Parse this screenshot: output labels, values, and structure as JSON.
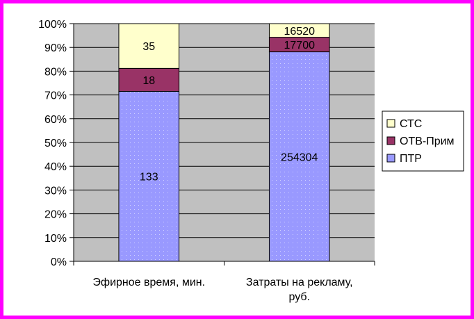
{
  "chart_data": {
    "type": "bar",
    "stacked": true,
    "normalized": true,
    "categories": [
      [
        "Эфирное время, мин."
      ],
      [
        "Затраты на рекламу,",
        "руб."
      ]
    ],
    "series": [
      {
        "name": "ПТР",
        "values": [
          133,
          254304
        ],
        "color": "#9999ff"
      },
      {
        "name": "ОТВ-Прим",
        "values": [
          18,
          17700
        ],
        "color": "#993366"
      },
      {
        "name": "СТС",
        "values": [
          35,
          16520
        ],
        "color": "#ffffcc"
      }
    ],
    "ylim": [
      0,
      100
    ],
    "yticks": [
      0,
      10,
      20,
      30,
      40,
      50,
      60,
      70,
      80,
      90,
      100
    ],
    "ytick_suffix": "%",
    "grid": true,
    "legend": {
      "placement": "right",
      "order": [
        "СТС",
        "ОТВ-Прим",
        "ПТР"
      ]
    },
    "plot_background": "#c0c0c0",
    "frame_color": "#ff00ff"
  }
}
